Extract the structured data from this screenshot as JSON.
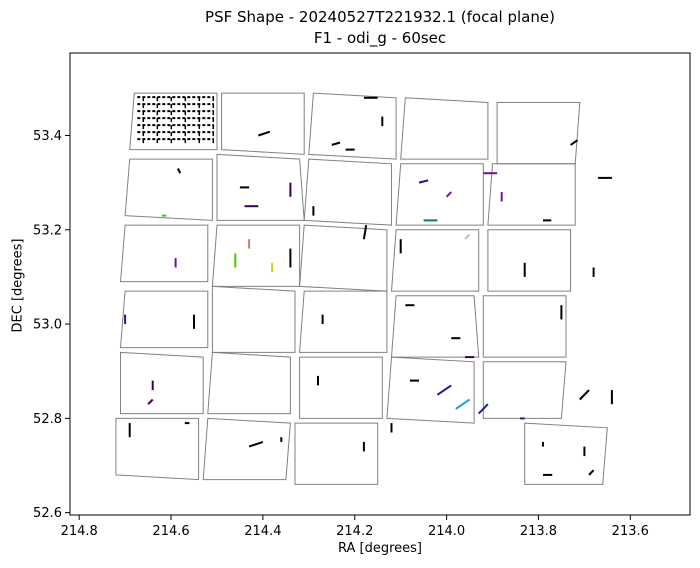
{
  "chart_data": {
    "type": "scatter",
    "title": "PSF Shape - 20240527T221932.1 (focal plane)",
    "subtitle": "F1 - odi_g - 60sec",
    "xlabel": "RA [degrees]",
    "ylabel": "DEC [degrees]",
    "xlim": [
      214.82,
      213.47
    ],
    "ylim": [
      52.595,
      53.575
    ],
    "x_ticks": [
      214.8,
      214.6,
      214.4,
      214.2,
      214.0,
      213.8,
      213.6
    ],
    "x_tick_labels": [
      "214.8",
      "214.6",
      "214.4",
      "214.2",
      "214.0",
      "213.8",
      "213.6"
    ],
    "y_ticks": [
      52.6,
      52.8,
      53.0,
      53.2,
      53.4
    ],
    "y_tick_labels": [
      "52.6",
      "52.8",
      "53.0",
      "53.2",
      "53.4"
    ],
    "grid": false,
    "colors": {
      "ccd_outline": "#808080",
      "axes": "#000000"
    },
    "ccds": [
      [
        [
          214.68,
          53.49
        ],
        [
          214.5,
          53.49
        ],
        [
          214.5,
          53.37
        ],
        [
          214.69,
          53.37
        ]
      ],
      [
        [
          214.49,
          53.49
        ],
        [
          214.31,
          53.49
        ],
        [
          214.31,
          53.36
        ],
        [
          214.49,
          53.37
        ]
      ],
      [
        [
          214.29,
          53.49
        ],
        [
          214.11,
          53.48
        ],
        [
          214.11,
          53.35
        ],
        [
          214.3,
          53.36
        ]
      ],
      [
        [
          214.09,
          53.48
        ],
        [
          213.91,
          53.47
        ],
        [
          213.91,
          53.35
        ],
        [
          214.1,
          53.35
        ]
      ],
      [
        [
          213.89,
          53.47
        ],
        [
          213.71,
          53.47
        ],
        [
          213.72,
          53.34
        ],
        [
          213.89,
          53.34
        ]
      ],
      [
        [
          214.69,
          53.35
        ],
        [
          214.51,
          53.35
        ],
        [
          214.51,
          53.22
        ],
        [
          214.7,
          53.23
        ]
      ],
      [
        [
          214.5,
          53.36
        ],
        [
          214.32,
          53.35
        ],
        [
          214.31,
          53.22
        ],
        [
          214.5,
          53.22
        ]
      ],
      [
        [
          214.3,
          53.35
        ],
        [
          214.12,
          53.34
        ],
        [
          214.12,
          53.21
        ],
        [
          214.31,
          53.22
        ]
      ],
      [
        [
          214.1,
          53.34
        ],
        [
          213.92,
          53.34
        ],
        [
          213.92,
          53.21
        ],
        [
          214.11,
          53.21
        ]
      ],
      [
        [
          213.9,
          53.34
        ],
        [
          213.72,
          53.34
        ],
        [
          213.72,
          53.21
        ],
        [
          213.91,
          53.21
        ]
      ],
      [
        [
          214.7,
          53.21
        ],
        [
          214.52,
          53.21
        ],
        [
          214.52,
          53.09
        ],
        [
          214.71,
          53.09
        ]
      ],
      [
        [
          214.5,
          53.21
        ],
        [
          214.32,
          53.21
        ],
        [
          214.32,
          53.08
        ],
        [
          214.51,
          53.08
        ]
      ],
      [
        [
          214.31,
          53.21
        ],
        [
          214.13,
          53.2
        ],
        [
          214.13,
          53.07
        ],
        [
          214.32,
          53.08
        ]
      ],
      [
        [
          214.11,
          53.2
        ],
        [
          213.93,
          53.2
        ],
        [
          213.93,
          53.07
        ],
        [
          214.12,
          53.07
        ]
      ],
      [
        [
          213.91,
          53.2
        ],
        [
          213.73,
          53.2
        ],
        [
          213.73,
          53.07
        ],
        [
          213.91,
          53.07
        ]
      ],
      [
        [
          214.7,
          53.07
        ],
        [
          214.52,
          53.07
        ],
        [
          214.52,
          52.95
        ],
        [
          214.71,
          52.95
        ]
      ],
      [
        [
          214.51,
          53.08
        ],
        [
          214.33,
          53.07
        ],
        [
          214.33,
          52.94
        ],
        [
          214.51,
          52.94
        ]
      ],
      [
        [
          214.31,
          53.07
        ],
        [
          214.13,
          53.07
        ],
        [
          214.13,
          52.94
        ],
        [
          214.32,
          52.94
        ]
      ],
      [
        [
          214.11,
          53.06
        ],
        [
          213.94,
          53.06
        ],
        [
          213.93,
          52.93
        ],
        [
          214.12,
          52.93
        ]
      ],
      [
        [
          213.92,
          53.06
        ],
        [
          213.74,
          53.06
        ],
        [
          213.74,
          52.93
        ],
        [
          213.92,
          52.93
        ]
      ],
      [
        [
          214.71,
          52.94
        ],
        [
          214.53,
          52.93
        ],
        [
          214.53,
          52.81
        ],
        [
          214.71,
          52.81
        ]
      ],
      [
        [
          214.51,
          52.94
        ],
        [
          214.34,
          52.93
        ],
        [
          214.34,
          52.81
        ],
        [
          214.52,
          52.81
        ]
      ],
      [
        [
          214.32,
          52.93
        ],
        [
          214.14,
          52.93
        ],
        [
          214.14,
          52.8
        ],
        [
          214.32,
          52.8
        ]
      ],
      [
        [
          214.12,
          52.93
        ],
        [
          213.94,
          52.92
        ],
        [
          213.94,
          52.79
        ],
        [
          214.13,
          52.8
        ]
      ],
      [
        [
          213.92,
          52.92
        ],
        [
          213.74,
          52.92
        ],
        [
          213.75,
          52.8
        ],
        [
          213.92,
          52.8
        ]
      ],
      [
        [
          214.72,
          52.8
        ],
        [
          214.54,
          52.8
        ],
        [
          214.54,
          52.67
        ],
        [
          214.72,
          52.68
        ]
      ],
      [
        [
          214.52,
          52.8
        ],
        [
          214.34,
          52.79
        ],
        [
          214.35,
          52.67
        ],
        [
          214.53,
          52.67
        ]
      ],
      [
        [
          214.33,
          52.79
        ],
        [
          214.15,
          52.79
        ],
        [
          214.15,
          52.66
        ],
        [
          214.33,
          52.66
        ]
      ],
      [
        [
          213.83,
          52.79
        ],
        [
          213.65,
          52.78
        ],
        [
          213.66,
          52.66
        ],
        [
          213.83,
          52.66
        ]
      ]
    ],
    "whiskers": [
      {
        "x": 214.58,
        "y": 53.32,
        "dx": -0.005,
        "dy": 0.01,
        "c": "#000000"
      },
      {
        "x": 214.45,
        "y": 53.29,
        "dx": 0.02,
        "dy": 0.0,
        "c": "#000000"
      },
      {
        "x": 214.44,
        "y": 53.25,
        "dx": 0.03,
        "dy": 0.0,
        "c": "#3a0050"
      },
      {
        "x": 214.41,
        "y": 53.4,
        "dx": 0.025,
        "dy": 0.008,
        "c": "#000000"
      },
      {
        "x": 214.34,
        "y": 53.27,
        "dx": 0.0,
        "dy": 0.03,
        "c": "#3a0050"
      },
      {
        "x": 214.29,
        "y": 53.23,
        "dx": 0.0,
        "dy": 0.02,
        "c": "#000000"
      },
      {
        "x": 214.25,
        "y": 53.38,
        "dx": 0.018,
        "dy": 0.005,
        "c": "#000000"
      },
      {
        "x": 214.22,
        "y": 53.37,
        "dx": 0.02,
        "dy": 0.0,
        "c": "#000000"
      },
      {
        "x": 214.18,
        "y": 53.48,
        "dx": 0.03,
        "dy": 0.0,
        "c": "#000000"
      },
      {
        "x": 214.14,
        "y": 53.42,
        "dx": 0.0,
        "dy": 0.02,
        "c": "#000000"
      },
      {
        "x": 214.06,
        "y": 53.3,
        "dx": 0.02,
        "dy": 0.005,
        "c": "#1a1aa0"
      },
      {
        "x": 214.05,
        "y": 53.22,
        "dx": 0.03,
        "dy": 0.0,
        "c": "#008060"
      },
      {
        "x": 214.0,
        "y": 53.27,
        "dx": 0.01,
        "dy": 0.01,
        "c": "#7010a0"
      },
      {
        "x": 213.92,
        "y": 53.32,
        "dx": 0.03,
        "dy": 0.0,
        "c": "#7010a0"
      },
      {
        "x": 213.88,
        "y": 53.26,
        "dx": 0.0,
        "dy": 0.02,
        "c": "#7010a0"
      },
      {
        "x": 213.73,
        "y": 53.38,
        "dx": 0.015,
        "dy": 0.01,
        "c": "#000000"
      },
      {
        "x": 213.67,
        "y": 53.31,
        "dx": 0.03,
        "dy": 0.0,
        "c": "#000000"
      },
      {
        "x": 213.79,
        "y": 53.22,
        "dx": 0.018,
        "dy": 0.0,
        "c": "#000000"
      },
      {
        "x": 214.62,
        "y": 53.23,
        "dx": 0.01,
        "dy": 0.0,
        "c": "#40d000"
      },
      {
        "x": 214.59,
        "y": 53.12,
        "dx": 0.0,
        "dy": 0.02,
        "c": "#7010a0"
      },
      {
        "x": 214.46,
        "y": 53.12,
        "dx": 0.0,
        "dy": 0.03,
        "c": "#40d000"
      },
      {
        "x": 214.43,
        "y": 53.16,
        "dx": 0.0,
        "dy": 0.02,
        "c": "#c08070"
      },
      {
        "x": 214.38,
        "y": 53.11,
        "dx": 0.0,
        "dy": 0.02,
        "c": "#c0e000"
      },
      {
        "x": 214.34,
        "y": 53.12,
        "dx": 0.0,
        "dy": 0.04,
        "c": "#000000"
      },
      {
        "x": 214.18,
        "y": 53.18,
        "dx": 0.005,
        "dy": 0.03,
        "c": "#000000"
      },
      {
        "x": 214.1,
        "y": 53.15,
        "dx": 0.0,
        "dy": 0.03,
        "c": "#000000"
      },
      {
        "x": 213.96,
        "y": 53.18,
        "dx": 0.01,
        "dy": 0.01,
        "c": "#c0c0c0"
      },
      {
        "x": 213.83,
        "y": 53.1,
        "dx": 0.0,
        "dy": 0.03,
        "c": "#000000"
      },
      {
        "x": 213.68,
        "y": 53.1,
        "dx": 0.0,
        "dy": 0.02,
        "c": "#000000"
      },
      {
        "x": 214.7,
        "y": 53.0,
        "dx": 0.0,
        "dy": 0.02,
        "c": "#1a1aa0"
      },
      {
        "x": 214.55,
        "y": 52.99,
        "dx": 0.0,
        "dy": 0.03,
        "c": "#000000"
      },
      {
        "x": 214.27,
        "y": 53.0,
        "dx": 0.0,
        "dy": 0.02,
        "c": "#000000"
      },
      {
        "x": 214.09,
        "y": 53.04,
        "dx": 0.02,
        "dy": 0.0,
        "c": "#000000"
      },
      {
        "x": 213.99,
        "y": 52.97,
        "dx": 0.02,
        "dy": 0.0,
        "c": "#000000"
      },
      {
        "x": 213.75,
        "y": 53.01,
        "dx": 0.0,
        "dy": 0.03,
        "c": "#000000"
      },
      {
        "x": 214.64,
        "y": 52.86,
        "dx": 0.0,
        "dy": 0.02,
        "c": "#3a0050"
      },
      {
        "x": 214.65,
        "y": 52.83,
        "dx": 0.01,
        "dy": 0.01,
        "c": "#3a0050"
      },
      {
        "x": 214.28,
        "y": 52.87,
        "dx": 0.0,
        "dy": 0.02,
        "c": "#000000"
      },
      {
        "x": 214.08,
        "y": 52.88,
        "dx": 0.02,
        "dy": 0.0,
        "c": "#000000"
      },
      {
        "x": 214.02,
        "y": 52.85,
        "dx": 0.03,
        "dy": 0.02,
        "c": "#1a1aa0"
      },
      {
        "x": 213.98,
        "y": 52.82,
        "dx": 0.03,
        "dy": 0.02,
        "c": "#20a0d0"
      },
      {
        "x": 213.93,
        "y": 52.81,
        "dx": 0.02,
        "dy": 0.02,
        "c": "#1a1aa0"
      },
      {
        "x": 213.96,
        "y": 52.93,
        "dx": 0.02,
        "dy": 0.0,
        "c": "#3a0050"
      },
      {
        "x": 213.84,
        "y": 52.8,
        "dx": 0.01,
        "dy": 0.0,
        "c": "#1a1aa0"
      },
      {
        "x": 213.71,
        "y": 52.84,
        "dx": 0.02,
        "dy": 0.02,
        "c": "#000000"
      },
      {
        "x": 213.64,
        "y": 52.83,
        "dx": 0.0,
        "dy": 0.03,
        "c": "#000000"
      },
      {
        "x": 214.69,
        "y": 52.76,
        "dx": 0.0,
        "dy": 0.03,
        "c": "#000000"
      },
      {
        "x": 214.57,
        "y": 52.79,
        "dx": 0.01,
        "dy": 0.0,
        "c": "#000000"
      },
      {
        "x": 214.43,
        "y": 52.74,
        "dx": 0.03,
        "dy": 0.01,
        "c": "#000000"
      },
      {
        "x": 214.36,
        "y": 52.75,
        "dx": 0.0,
        "dy": 0.01,
        "c": "#000000"
      },
      {
        "x": 214.18,
        "y": 52.73,
        "dx": 0.0,
        "dy": 0.02,
        "c": "#000000"
      },
      {
        "x": 214.12,
        "y": 52.77,
        "dx": 0.0,
        "dy": 0.02,
        "c": "#000000"
      },
      {
        "x": 213.79,
        "y": 52.74,
        "dx": 0.0,
        "dy": 0.01,
        "c": "#000000"
      },
      {
        "x": 213.7,
        "y": 52.72,
        "dx": 0.0,
        "dy": 0.02,
        "c": "#000000"
      },
      {
        "x": 213.69,
        "y": 52.68,
        "dx": 0.01,
        "dy": 0.01,
        "c": "#000000"
      },
      {
        "x": 213.79,
        "y": 52.68,
        "dx": 0.02,
        "dy": 0.0,
        "c": "#000000"
      }
    ]
  }
}
